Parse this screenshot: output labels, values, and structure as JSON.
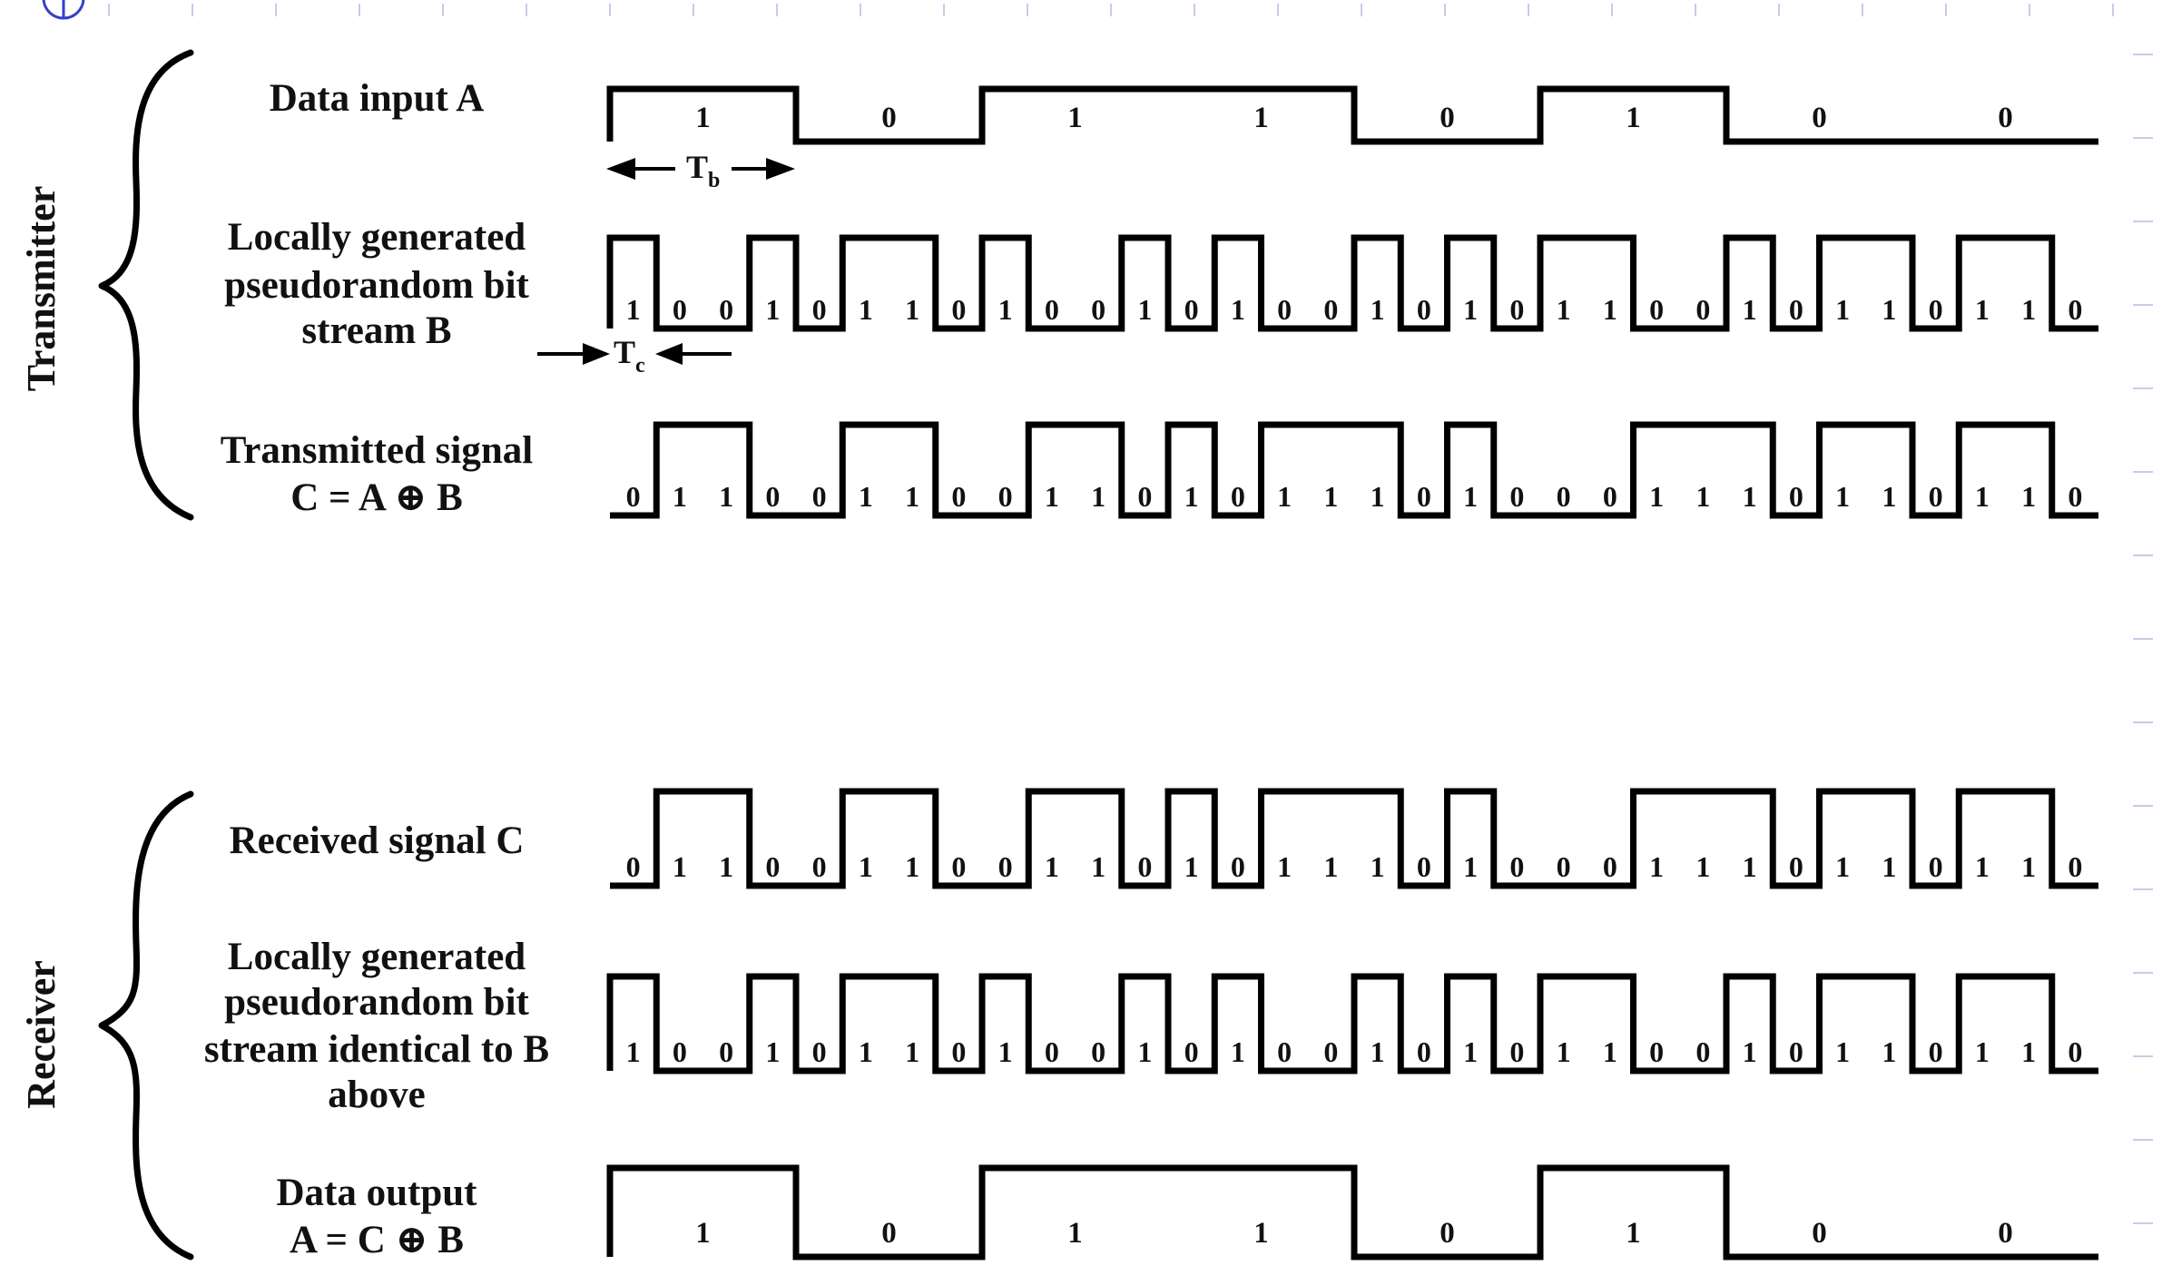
{
  "transmitter": {
    "section_label": "Transmitter",
    "rows": [
      {
        "id": "data-input-a",
        "label_lines": [
          "Data input A"
        ],
        "kind": "data",
        "bits": [
          1,
          0,
          1,
          1,
          0,
          1,
          0,
          0
        ]
      },
      {
        "id": "pn-stream-b",
        "label_lines": [
          "Locally generated",
          "pseudorandom bit",
          "stream B"
        ],
        "kind": "chip",
        "bits": [
          1,
          0,
          0,
          1,
          0,
          1,
          1,
          0,
          1,
          0,
          0,
          1,
          0,
          1,
          0,
          0,
          1,
          0,
          1,
          0,
          1,
          1,
          0,
          0,
          1,
          0,
          1,
          1,
          0,
          1,
          1,
          0
        ]
      },
      {
        "id": "transmitted-signal-c",
        "label_lines": [
          "Transmitted signal",
          "C = A ⊕ B"
        ],
        "kind": "chip",
        "bits": [
          0,
          1,
          1,
          0,
          0,
          1,
          1,
          0,
          0,
          1,
          1,
          0,
          1,
          0,
          1,
          1,
          1,
          0,
          1,
          0,
          0,
          0,
          1,
          1,
          1,
          0,
          1,
          1,
          0,
          1,
          1,
          0
        ]
      }
    ],
    "tb_label": "T",
    "tb_sub": "b",
    "tc_label": "T",
    "tc_sub": "c"
  },
  "receiver": {
    "section_label": "Receiver",
    "rows": [
      {
        "id": "received-signal-c",
        "label_lines": [
          "Received signal C"
        ],
        "kind": "chip",
        "bits": [
          0,
          1,
          1,
          0,
          0,
          1,
          1,
          0,
          0,
          1,
          1,
          0,
          1,
          0,
          1,
          1,
          1,
          0,
          1,
          0,
          0,
          0,
          1,
          1,
          1,
          0,
          1,
          1,
          0,
          1,
          1,
          0
        ]
      },
      {
        "id": "pn-stream-b-rx",
        "label_lines": [
          "Locally generated",
          "pseudorandom bit",
          "stream identical to B",
          "above"
        ],
        "kind": "chip",
        "bits": [
          1,
          0,
          0,
          1,
          0,
          1,
          1,
          0,
          1,
          0,
          0,
          1,
          0,
          1,
          0,
          0,
          1,
          0,
          1,
          0,
          1,
          1,
          0,
          0,
          1,
          0,
          1,
          1,
          0,
          1,
          1,
          0
        ]
      },
      {
        "id": "data-output-a",
        "label_lines": [
          "Data output",
          "A = C ⊕ B"
        ],
        "kind": "data",
        "bits": [
          1,
          0,
          1,
          1,
          0,
          1,
          0,
          0
        ]
      }
    ]
  },
  "icons": {
    "corner": "circle-plus-icon"
  }
}
